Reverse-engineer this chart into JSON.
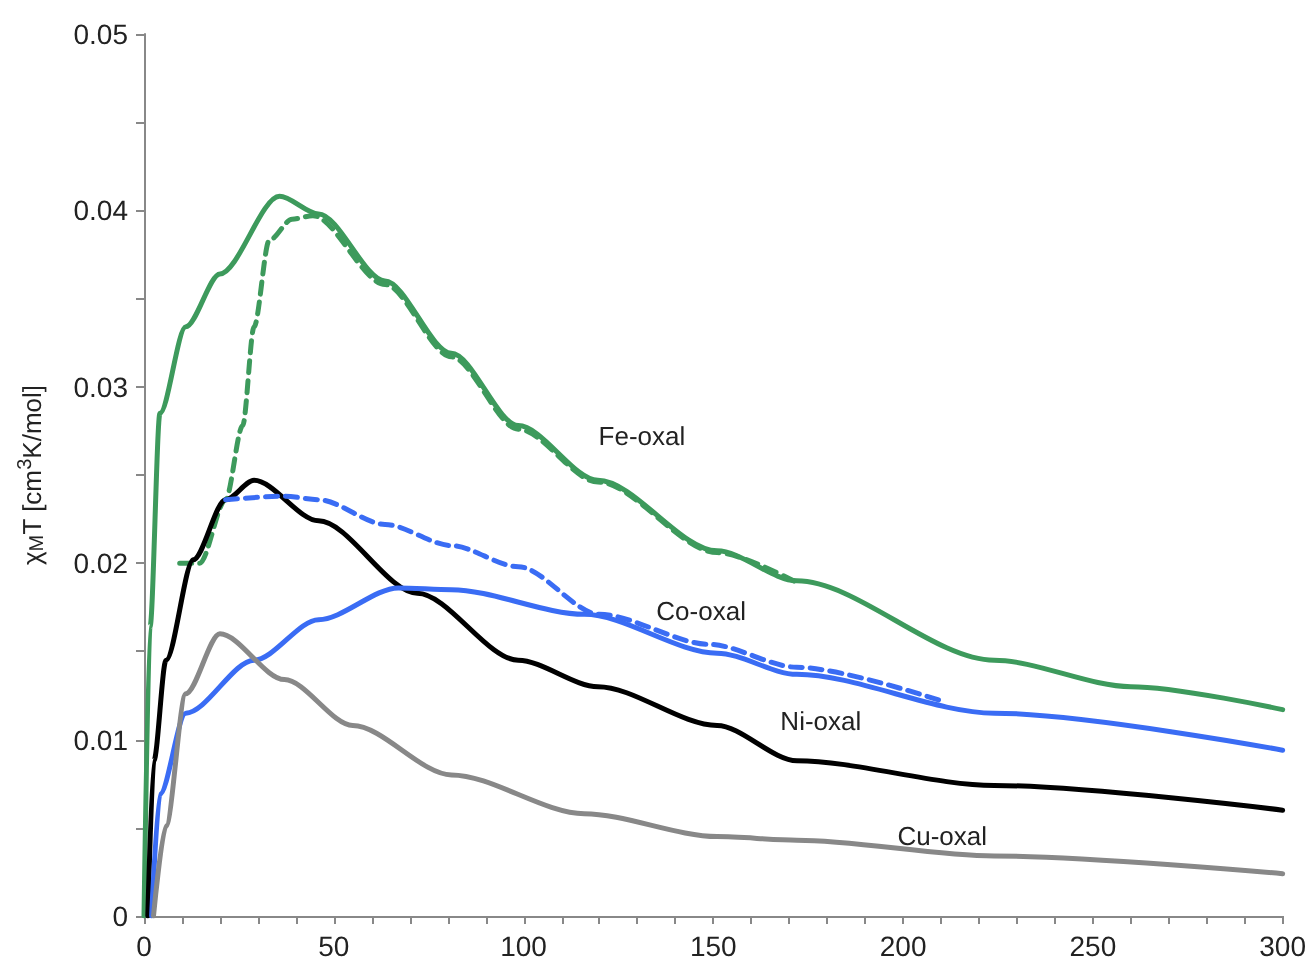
{
  "chart_data": {
    "type": "line",
    "ylabel": "χ$_{M}$T [cm$^{3}$K/mol]",
    "xlim": [
      0,
      300
    ],
    "xticks": [
      0,
      {
        "value": 10,
        "label": null
      },
      {
        "value": 20,
        "label": null
      },
      {
        "value": 30,
        "label": null
      },
      {
        "value": 40,
        "label": null
      },
      50,
      {
        "value": 60,
        "label": null
      },
      {
        "value": 70,
        "label": null
      },
      {
        "value": 80,
        "label": null
      },
      {
        "value": 90,
        "label": null
      },
      100,
      {
        "value": 110,
        "label": null
      },
      {
        "value": 120,
        "label": null
      },
      {
        "value": 130,
        "label": null
      },
      {
        "value": 140,
        "label": null
      },
      150,
      {
        "value": 160,
        "label": null
      },
      {
        "value": 170,
        "label": null
      },
      {
        "value": 180,
        "label": null
      },
      {
        "value": 190,
        "label": null
      },
      200,
      {
        "value": 210,
        "label": null
      },
      {
        "value": 220,
        "label": null
      },
      {
        "value": 230,
        "label": null
      },
      {
        "value": 240,
        "label": null
      },
      250,
      {
        "value": 260,
        "label": null
      },
      {
        "value": 270,
        "label": null
      },
      {
        "value": 280,
        "label": null
      },
      {
        "value": 290,
        "label": null
      },
      300
    ],
    "ylim": [
      0,
      0.05
    ],
    "yticks": [
      0,
      {
        "value": 0.005,
        "label": null
      },
      0.01,
      {
        "value": 0.015,
        "label": null
      },
      0.02,
      {
        "value": 0.025,
        "label": null
      },
      0.03,
      {
        "value": 0.035,
        "label": null
      },
      0.04,
      {
        "value": 0.045,
        "label": null
      },
      0.05
    ],
    "grid": false,
    "legend": false,
    "marker": "none",
    "series": [
      {
        "name": "Fe-oxal",
        "color": "#3d9a5c",
        "line_style": "solid",
        "x": [
          0,
          1.6,
          4.2,
          11,
          20,
          35.7,
          46,
          63.5,
          81,
          98.6,
          119.6,
          151,
          172,
          224,
          260,
          300
        ],
        "values": [
          0,
          0.0164,
          0.0285,
          0.0334,
          0.0364,
          0.0408,
          0.0398,
          0.036,
          0.0319,
          0.0278,
          0.0247,
          0.0207,
          0.019,
          0.0145,
          0.013,
          0.0117
        ]
      },
      {
        "color": "#3d9a5c",
        "line_style": "dashed",
        "x": [
          9.4,
          14.7,
          21.5,
          26,
          29,
          33,
          39,
          44.5,
          63.5,
          81,
          98.6,
          119.6,
          151,
          172
        ],
        "values": [
          0.02,
          0.02,
          0.0236,
          0.0278,
          0.0334,
          0.0383,
          0.0395,
          0.0397,
          0.0358,
          0.0317,
          0.0276,
          0.0246,
          0.0206,
          0.0189
        ]
      },
      {
        "name": "Ni-oxal",
        "color": "#000000",
        "line_style": "solid",
        "x": [
          1,
          2.6,
          5.8,
          13,
          21.5,
          29,
          46,
          72,
          98.6,
          119.6,
          151,
          172,
          224,
          300
        ],
        "values": [
          0,
          0.0088,
          0.0145,
          0.0202,
          0.0236,
          0.0247,
          0.0224,
          0.0183,
          0.0145,
          0.013,
          0.0108,
          0.0088,
          0.0074,
          0.006
        ]
      },
      {
        "name": "Co-oxal",
        "color": "#3a6cf4",
        "line_style": "solid",
        "x": [
          2,
          4.2,
          11,
          29,
          46,
          67,
          81,
          116,
          151,
          172,
          224,
          300
        ],
        "values": [
          0,
          0.0069,
          0.0115,
          0.0145,
          0.0168,
          0.0186,
          0.0185,
          0.0171,
          0.0149,
          0.0137,
          0.0115,
          0.0094
        ]
      },
      {
        "color": "#3a6cf4",
        "line_style": "dashed",
        "x": [
          21.5,
          37,
          46,
          63.5,
          81,
          98.6,
          120,
          149,
          172,
          210
        ],
        "values": [
          0.0236,
          0.0238,
          0.0236,
          0.0222,
          0.021,
          0.0198,
          0.0171,
          0.0154,
          0.0141,
          0.0122
        ]
      },
      {
        "name": "Cu-oxal",
        "color": "#888888",
        "line_style": "solid",
        "x": [
          2.5,
          5.8,
          11,
          20,
          37,
          55,
          81,
          116,
          151,
          172,
          224,
          300
        ],
        "values": [
          0,
          0.0051,
          0.0126,
          0.016,
          0.0134,
          0.0108,
          0.008,
          0.0058,
          0.0045,
          0.0043,
          0.0034,
          0.0024
        ]
      }
    ]
  }
}
